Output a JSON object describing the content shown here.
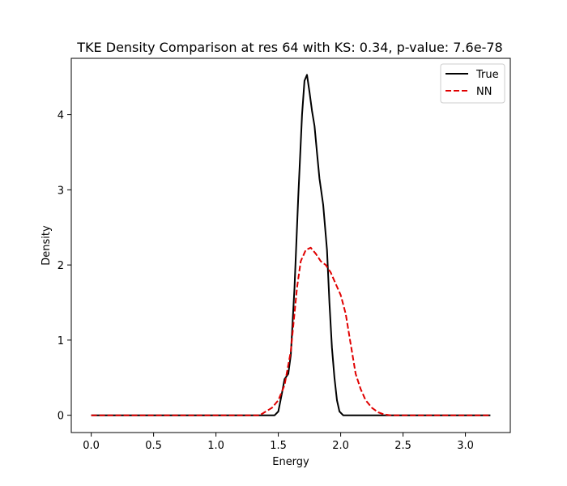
{
  "chart_data": {
    "type": "line",
    "title": "TKE Density Comparison at res 64 with KS: 0.34, p-value: 7.6e-78",
    "xlabel": "Energy",
    "ylabel": "Density",
    "xlim": [
      -0.16,
      3.36
    ],
    "ylim": [
      -0.23,
      4.75
    ],
    "xticks": [
      0.0,
      0.5,
      1.0,
      1.5,
      2.0,
      2.5,
      3.0
    ],
    "xtick_labels": [
      "0.0",
      "0.5",
      "1.0",
      "1.5",
      "2.0",
      "2.5",
      "3.0"
    ],
    "yticks": [
      0,
      1,
      2,
      3,
      4
    ],
    "ytick_labels": [
      "0",
      "1",
      "2",
      "3",
      "4"
    ],
    "grid": false,
    "legend_position": "top-right",
    "series": [
      {
        "name": "True",
        "color": "#000000",
        "style": "solid",
        "x": [
          0.0,
          1.4,
          1.47,
          1.5,
          1.53,
          1.55,
          1.58,
          1.6,
          1.63,
          1.66,
          1.69,
          1.71,
          1.73,
          1.75,
          1.77,
          1.79,
          1.81,
          1.83,
          1.86,
          1.89,
          1.91,
          1.93,
          1.95,
          1.97,
          1.99,
          2.02,
          2.2,
          3.2
        ],
        "values": [
          0.0,
          0.0,
          0.0,
          0.05,
          0.3,
          0.48,
          0.55,
          0.8,
          1.7,
          2.9,
          4.0,
          4.45,
          4.53,
          4.3,
          4.05,
          3.85,
          3.5,
          3.15,
          2.8,
          2.2,
          1.5,
          0.9,
          0.5,
          0.2,
          0.05,
          0.0,
          0.0,
          0.0
        ]
      },
      {
        "name": "NN",
        "color": "#e00000",
        "style": "dashed",
        "x": [
          0.0,
          1.35,
          1.4,
          1.45,
          1.5,
          1.55,
          1.6,
          1.65,
          1.68,
          1.72,
          1.76,
          1.8,
          1.84,
          1.88,
          1.92,
          1.96,
          2.0,
          2.04,
          2.08,
          2.12,
          2.16,
          2.2,
          2.25,
          2.3,
          2.35,
          2.4,
          2.6,
          3.2
        ],
        "values": [
          0.0,
          0.0,
          0.05,
          0.1,
          0.2,
          0.4,
          0.85,
          1.7,
          2.05,
          2.2,
          2.23,
          2.15,
          2.05,
          2.0,
          1.9,
          1.75,
          1.6,
          1.35,
          0.95,
          0.55,
          0.35,
          0.2,
          0.1,
          0.04,
          0.01,
          0.0,
          0.0,
          0.0
        ]
      }
    ]
  }
}
